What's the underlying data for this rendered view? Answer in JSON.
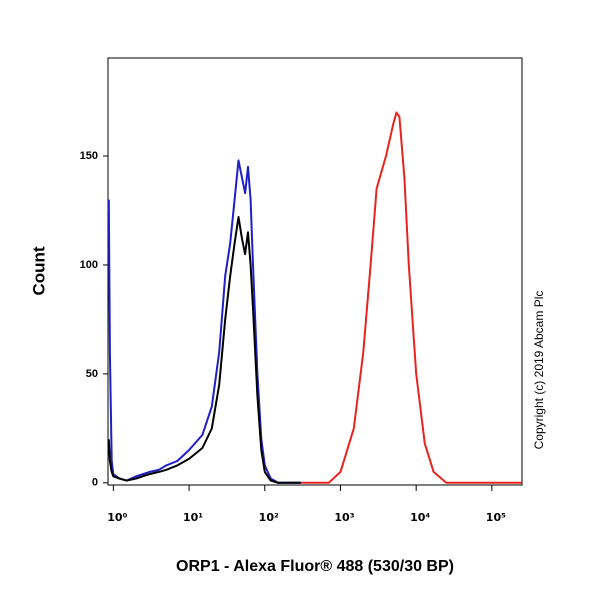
{
  "chart_data": {
    "type": "line",
    "y_label": "Count",
    "x_label": "ORP1 - Alexa Fluor® 488 (530/30 BP)",
    "annotation": "Copyright (c) 2019 Abcam Plc",
    "xscale": "log",
    "xlim": [
      0.85,
      250000
    ],
    "ylim": [
      -1,
      195
    ],
    "xticks": [
      {
        "value": 1,
        "label": "10⁰"
      },
      {
        "value": 10,
        "label": "10¹"
      },
      {
        "value": 100,
        "label": "10²"
      },
      {
        "value": 1000,
        "label": "10³"
      },
      {
        "value": 10000,
        "label": "10⁴"
      },
      {
        "value": 100000,
        "label": "10⁵"
      }
    ],
    "yticks": [
      0,
      50,
      100,
      150
    ],
    "series": [
      {
        "color": "#1f1fc8",
        "x": [
          0.87,
          0.9,
          0.95,
          1.0,
          1.2,
          1.5,
          2,
          3,
          4,
          5,
          7,
          10,
          15,
          20,
          25,
          30,
          35,
          40,
          45,
          50,
          55,
          60,
          65,
          70,
          80,
          90,
          100,
          120,
          150,
          300
        ],
        "values": [
          130,
          60,
          10,
          4,
          2,
          1,
          3,
          5,
          6,
          8,
          10,
          15,
          22,
          35,
          60,
          95,
          110,
          130,
          148,
          140,
          133,
          145,
          130,
          100,
          50,
          20,
          8,
          2,
          0,
          0
        ]
      },
      {
        "color": "#000000",
        "x": [
          0.87,
          0.9,
          0.95,
          1.0,
          1.2,
          1.5,
          2,
          3,
          4,
          5,
          7,
          10,
          15,
          20,
          25,
          30,
          35,
          40,
          45,
          50,
          55,
          60,
          65,
          70,
          80,
          90,
          100,
          120,
          150,
          300
        ],
        "values": [
          20,
          10,
          5,
          3,
          2,
          1,
          2,
          4,
          5,
          6,
          8,
          11,
          16,
          25,
          45,
          75,
          95,
          110,
          122,
          112,
          105,
          115,
          100,
          80,
          40,
          15,
          5,
          1,
          0,
          0
        ]
      },
      {
        "color": "#e8231f",
        "x": [
          300,
          700,
          1000,
          1500,
          2000,
          2500,
          3000,
          4000,
          5000,
          5500,
          6000,
          7000,
          8000,
          10000,
          13000,
          17000,
          25000,
          250000
        ],
        "values": [
          0,
          0,
          5,
          25,
          60,
          100,
          135,
          150,
          165,
          170,
          168,
          140,
          100,
          50,
          18,
          5,
          0,
          0
        ]
      }
    ]
  }
}
